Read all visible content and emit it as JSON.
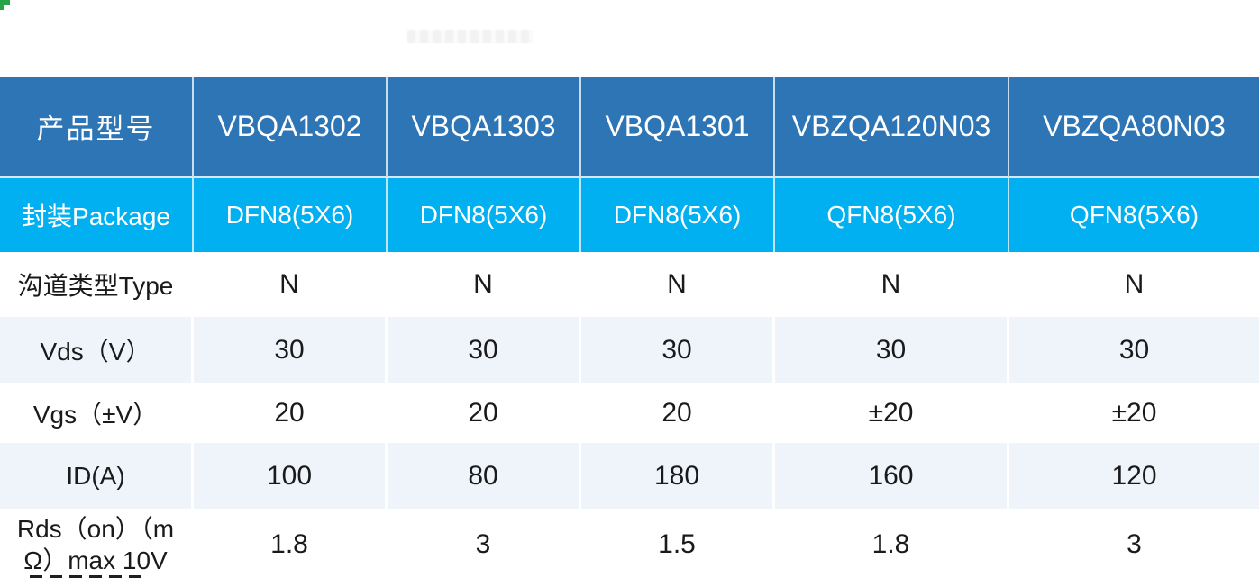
{
  "colors": {
    "header_bg": "#2E75B6",
    "package_row_bg": "#00B0F0",
    "stripe_row_bg": "#EFF3FA",
    "header_text": "#FFFFFF",
    "body_text": "#1A1A1A",
    "corner_flag": "#27A348"
  },
  "decorations": {
    "corner_flag": "green-corner-mark",
    "watermark": "faint-illegible-smudge",
    "bottom_fragment": "clipped-text-top-edge"
  },
  "table": {
    "header": {
      "label": "产品型号",
      "models": [
        "VBQA1302",
        "VBQA1303",
        "VBQA1301",
        "VBZQA120N03",
        "VBZQA80N03"
      ]
    },
    "rows": [
      {
        "label": "封装Package",
        "values": [
          "DFN8(5X6)",
          "DFN8(5X6)",
          "DFN8(5X6)",
          "QFN8(5X6)",
          "QFN8(5X6)"
        ]
      },
      {
        "label": "沟道类型Type",
        "values": [
          "N",
          "N",
          "N",
          "N",
          "N"
        ]
      },
      {
        "label": "Vds（V）",
        "values": [
          "30",
          "30",
          "30",
          "30",
          "30"
        ]
      },
      {
        "label": "Vgs（±V）",
        "values": [
          "20",
          "20",
          "20",
          "±20",
          "±20"
        ]
      },
      {
        "label": "ID(A)",
        "values": [
          "100",
          "80",
          "180",
          "160",
          "120"
        ]
      },
      {
        "label": "Rds（on）（mΩ）max 10V",
        "values": [
          "1.8",
          "3",
          "1.5",
          "1.8",
          "3"
        ]
      }
    ]
  }
}
